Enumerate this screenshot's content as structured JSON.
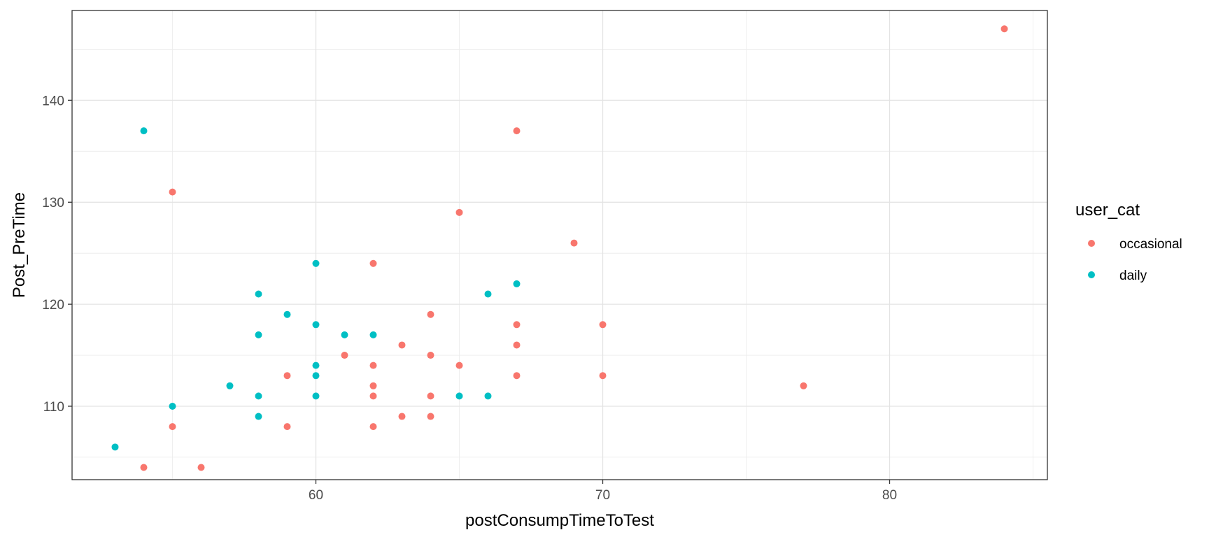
{
  "chart_data": {
    "type": "scatter",
    "title": "",
    "xlabel": "postConsumpTimeToTest",
    "ylabel": "Post_PreTime",
    "xlim": [
      51.5,
      85.5
    ],
    "ylim": [
      102.8,
      148.8
    ],
    "x_ticks": [
      60,
      70,
      80
    ],
    "y_ticks": [
      110,
      120,
      130,
      140
    ],
    "x_minor_ticks": [
      55,
      65,
      75,
      85
    ],
    "y_minor_ticks": [
      105,
      115,
      125,
      135,
      145
    ],
    "grid": true,
    "legend": {
      "title": "user_cat",
      "position": "right"
    },
    "series": [
      {
        "name": "occasional",
        "color": "#F8766D",
        "points": [
          [
            54,
            104
          ],
          [
            55,
            108
          ],
          [
            55,
            131
          ],
          [
            56,
            104
          ],
          [
            59,
            113
          ],
          [
            59,
            108
          ],
          [
            61,
            115
          ],
          [
            62,
            124
          ],
          [
            62,
            114
          ],
          [
            62,
            112
          ],
          [
            62,
            111
          ],
          [
            62,
            108
          ],
          [
            63,
            116
          ],
          [
            63,
            109
          ],
          [
            64,
            119
          ],
          [
            64,
            115
          ],
          [
            64,
            111
          ],
          [
            64,
            109
          ],
          [
            65,
            129
          ],
          [
            65,
            114
          ],
          [
            67,
            137
          ],
          [
            67,
            118
          ],
          [
            67,
            116
          ],
          [
            67,
            113
          ],
          [
            69,
            126
          ],
          [
            70,
            118
          ],
          [
            70,
            113
          ],
          [
            77,
            112
          ],
          [
            84,
            147
          ]
        ]
      },
      {
        "name": "daily",
        "color": "#00BFC4",
        "points": [
          [
            53,
            106
          ],
          [
            54,
            137
          ],
          [
            55,
            110
          ],
          [
            57,
            112
          ],
          [
            58,
            121
          ],
          [
            58,
            117
          ],
          [
            58,
            111
          ],
          [
            58,
            109
          ],
          [
            59,
            119
          ],
          [
            60,
            124
          ],
          [
            60,
            118
          ],
          [
            60,
            114
          ],
          [
            60,
            113
          ],
          [
            60,
            111
          ],
          [
            61,
            117
          ],
          [
            62,
            117
          ],
          [
            65,
            111
          ],
          [
            66,
            121
          ],
          [
            66,
            111
          ],
          [
            67,
            122
          ]
        ]
      }
    ]
  }
}
